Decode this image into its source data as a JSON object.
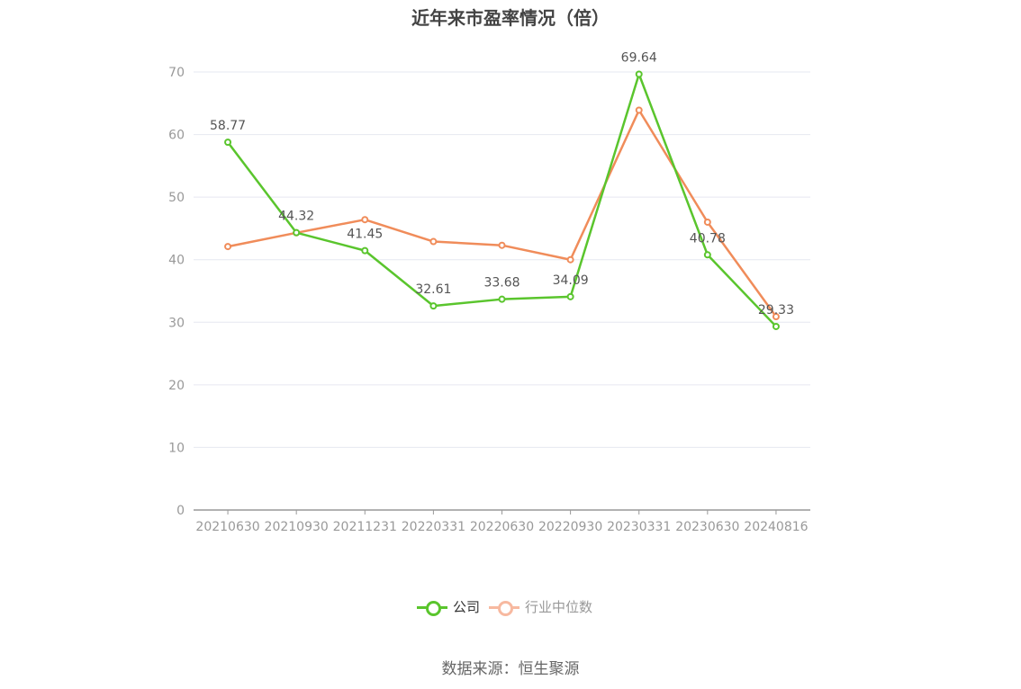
{
  "title": "近年来市盈率情况（倍）",
  "source": "数据来源：恒生聚源",
  "colors": {
    "company": "#5ac52d",
    "industry": "#f08c5a",
    "industry_legend": "#f7b9a0",
    "grid": "#e6e8f0",
    "axis": "#999999"
  },
  "chart_data": {
    "type": "line",
    "title": "近年来市盈率情况（倍）",
    "categories": [
      "20210630",
      "20210930",
      "20211231",
      "20220331",
      "20220630",
      "20220930",
      "20230331",
      "20230630",
      "20240816"
    ],
    "series": [
      {
        "name": "公司",
        "values": [
          58.77,
          44.32,
          41.45,
          32.61,
          33.68,
          34.09,
          69.64,
          40.78,
          29.33
        ],
        "labels": [
          "58.77",
          "44.32",
          "41.45",
          "32.61",
          "33.68",
          "34.09",
          "69.64",
          "40.78",
          "29.33"
        ]
      },
      {
        "name": "行业中位数",
        "values": [
          42.1,
          44.3,
          46.4,
          42.9,
          42.3,
          40.0,
          63.9,
          46.0,
          30.9
        ]
      }
    ],
    "yticks": [
      "0",
      "10",
      "20",
      "30",
      "40",
      "50",
      "60",
      "70"
    ],
    "ylim": [
      0,
      70
    ],
    "grid": true,
    "legend": "bottom-center"
  },
  "legend": {
    "company": "公司",
    "industry": "行业中位数"
  }
}
